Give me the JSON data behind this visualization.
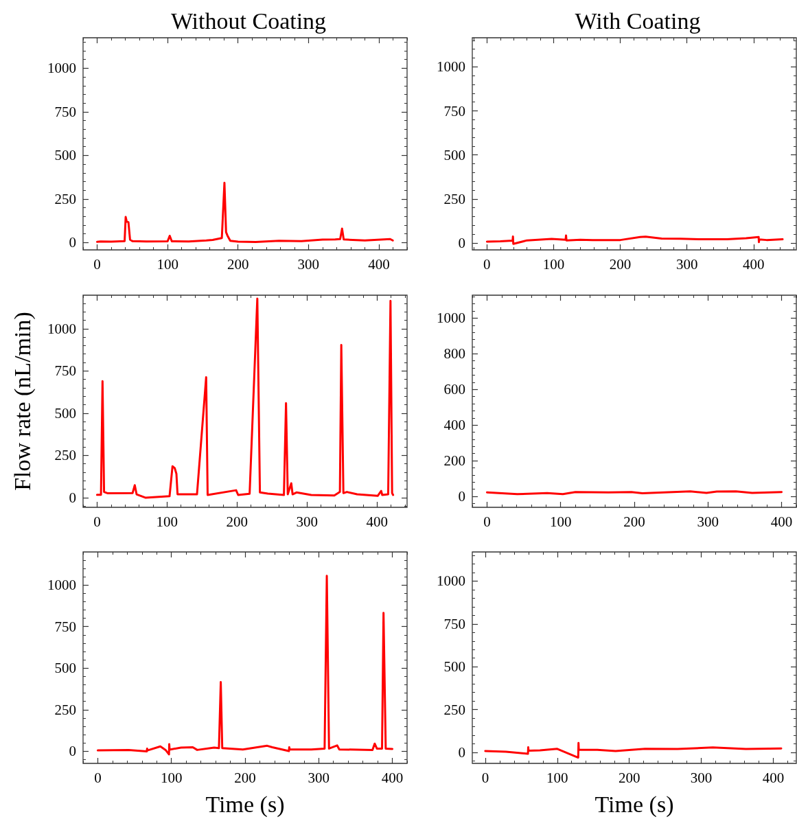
{
  "chart_data": [
    {
      "type": "line",
      "title": "Without Coating",
      "color": "#ff0000",
      "marker": "none",
      "line_style": "solid",
      "grid": false,
      "xlim": [
        -20,
        440
      ],
      "ylim": [
        -42,
        1175
      ],
      "xticks": [
        0,
        100,
        200,
        300,
        400
      ],
      "yticks": [
        0,
        250,
        500,
        750,
        1000
      ],
      "x": [
        0,
        5,
        20,
        39,
        40.5,
        42,
        44.4,
        46.7,
        50,
        70,
        100,
        103,
        106,
        130,
        155,
        164,
        177,
        180.7,
        183,
        185,
        189,
        200,
        225,
        258,
        290,
        320,
        338,
        345,
        347.7,
        350,
        380,
        416,
        419.7
      ],
      "values": [
        4,
        6,
        5,
        8,
        147,
        120,
        117,
        17,
        8,
        6,
        7,
        39,
        7,
        6,
        12,
        15,
        26,
        343,
        60,
        40,
        10,
        5,
        3,
        10,
        8,
        17,
        18,
        20,
        80,
        18,
        12,
        20,
        12
      ]
    },
    {
      "type": "line",
      "title": "With Coating",
      "color": "#ff0000",
      "marker": "none",
      "line_style": "solid",
      "grid": false,
      "xlim": [
        -22,
        464
      ],
      "ylim": [
        -39,
        1165
      ],
      "xticks": [
        0,
        100,
        200,
        300,
        400
      ],
      "yticks": [
        0,
        250,
        500,
        750,
        1000
      ],
      "x": [
        0,
        20,
        38.5,
        39,
        39.5,
        60,
        97,
        118,
        118.6,
        119.2,
        140,
        158.6,
        200,
        229.7,
        238,
        262,
        290,
        320,
        360,
        388.7,
        407.5,
        407.9,
        408.3,
        419.5,
        443.4
      ],
      "values": [
        8,
        10,
        14,
        37,
        -5,
        15,
        23,
        18,
        43,
        15,
        18,
        17,
        17,
        34,
        36,
        25,
        24,
        21,
        21,
        27,
        34,
        5,
        20,
        17,
        21
      ]
    },
    {
      "type": "line",
      "ylabel": "Flow rate (nL/min)",
      "color": "#ff0000",
      "marker": "none",
      "line_style": "solid",
      "grid": false,
      "xlim": [
        -20,
        443
      ],
      "ylim": [
        -57,
        1198
      ],
      "xticks": [
        0,
        100,
        200,
        300,
        400
      ],
      "yticks": [
        0,
        250,
        500,
        750,
        1000
      ],
      "x": [
        0,
        5.6,
        7.8,
        10,
        15.4,
        50.7,
        53.9,
        56.5,
        69,
        103.6,
        107.8,
        111,
        113.4,
        115,
        142.8,
        155.9,
        158,
        198.7,
        201.6,
        218,
        229,
        232.7,
        244,
        267,
        270,
        272.5,
        277.5,
        279.4,
        285,
        306,
        339,
        347,
        349,
        352,
        357,
        371.6,
        401,
        406,
        407.5,
        416,
        419.3,
        421.6,
        423
      ],
      "values": [
        17,
        17,
        689,
        34,
        26,
        27,
        74,
        20,
        0,
        9,
        186,
        175,
        141,
        20,
        20,
        713,
        16,
        44,
        16,
        23,
        1178,
        31,
        24,
        16,
        559,
        20,
        85,
        20,
        31,
        16,
        13,
        34,
        904,
        27,
        34,
        20,
        11,
        40,
        16,
        20,
        1164,
        27,
        16
      ]
    },
    {
      "type": "line",
      "color": "#ff0000",
      "marker": "none",
      "line_style": "solid",
      "grid": false,
      "xlim": [
        -20,
        420
      ],
      "ylim": [
        -62,
        1129
      ],
      "xticks": [
        0,
        100,
        200,
        300,
        400
      ],
      "yticks": [
        0,
        200,
        400,
        600,
        800,
        1000
      ],
      "x": [
        0,
        41,
        81.6,
        103,
        120,
        165,
        196,
        211,
        276,
        298,
        312,
        338,
        360,
        400
      ],
      "values": [
        22,
        12,
        18,
        12,
        24,
        22,
        24,
        17,
        28,
        19,
        27,
        28,
        19,
        24
      ]
    },
    {
      "type": "line",
      "xlabel": "Time (s)",
      "color": "#ff0000",
      "marker": "none",
      "line_style": "solid",
      "grid": false,
      "xlim": [
        -20,
        420
      ],
      "ylim": [
        -73,
        1199
      ],
      "xticks": [
        0,
        100,
        200,
        300,
        400
      ],
      "yticks": [
        0,
        250,
        500,
        750,
        1000
      ],
      "x": [
        0,
        42,
        66.5,
        67,
        67.5,
        85,
        92,
        96.7,
        97,
        97.5,
        113,
        129,
        135,
        158,
        164.5,
        167,
        169,
        197,
        230,
        237,
        259.5,
        260,
        260.5,
        290,
        308,
        311,
        314,
        325,
        328,
        373,
        376,
        379,
        386,
        388,
        391,
        400
      ],
      "values": [
        5,
        8,
        -1,
        16,
        5,
        29,
        8,
        -19,
        43,
        10,
        22,
        24,
        8,
        22,
        19,
        416,
        19,
        11,
        33,
        24,
        1,
        24,
        12,
        11,
        16,
        1055,
        16,
        35,
        11,
        8,
        46,
        16,
        16,
        832,
        16,
        14
      ]
    },
    {
      "type": "line",
      "xlabel": "Time (s)",
      "color": "#ff0000",
      "marker": "none",
      "line_style": "solid",
      "grid": false,
      "xlim": [
        -18,
        432
      ],
      "ylim": [
        -64,
        1170
      ],
      "xticks": [
        0,
        100,
        200,
        300,
        400
      ],
      "yticks": [
        0,
        250,
        500,
        750,
        1000
      ],
      "x": [
        0,
        28.6,
        59.3,
        59.7,
        60.1,
        76,
        100,
        129.1,
        129.5,
        129.9,
        155.6,
        181,
        222,
        267,
        316,
        362,
        411
      ],
      "values": [
        8,
        4,
        -8,
        30,
        10,
        12,
        21,
        -30,
        55,
        15,
        15,
        8,
        21,
        20,
        29,
        20,
        23
      ]
    }
  ]
}
